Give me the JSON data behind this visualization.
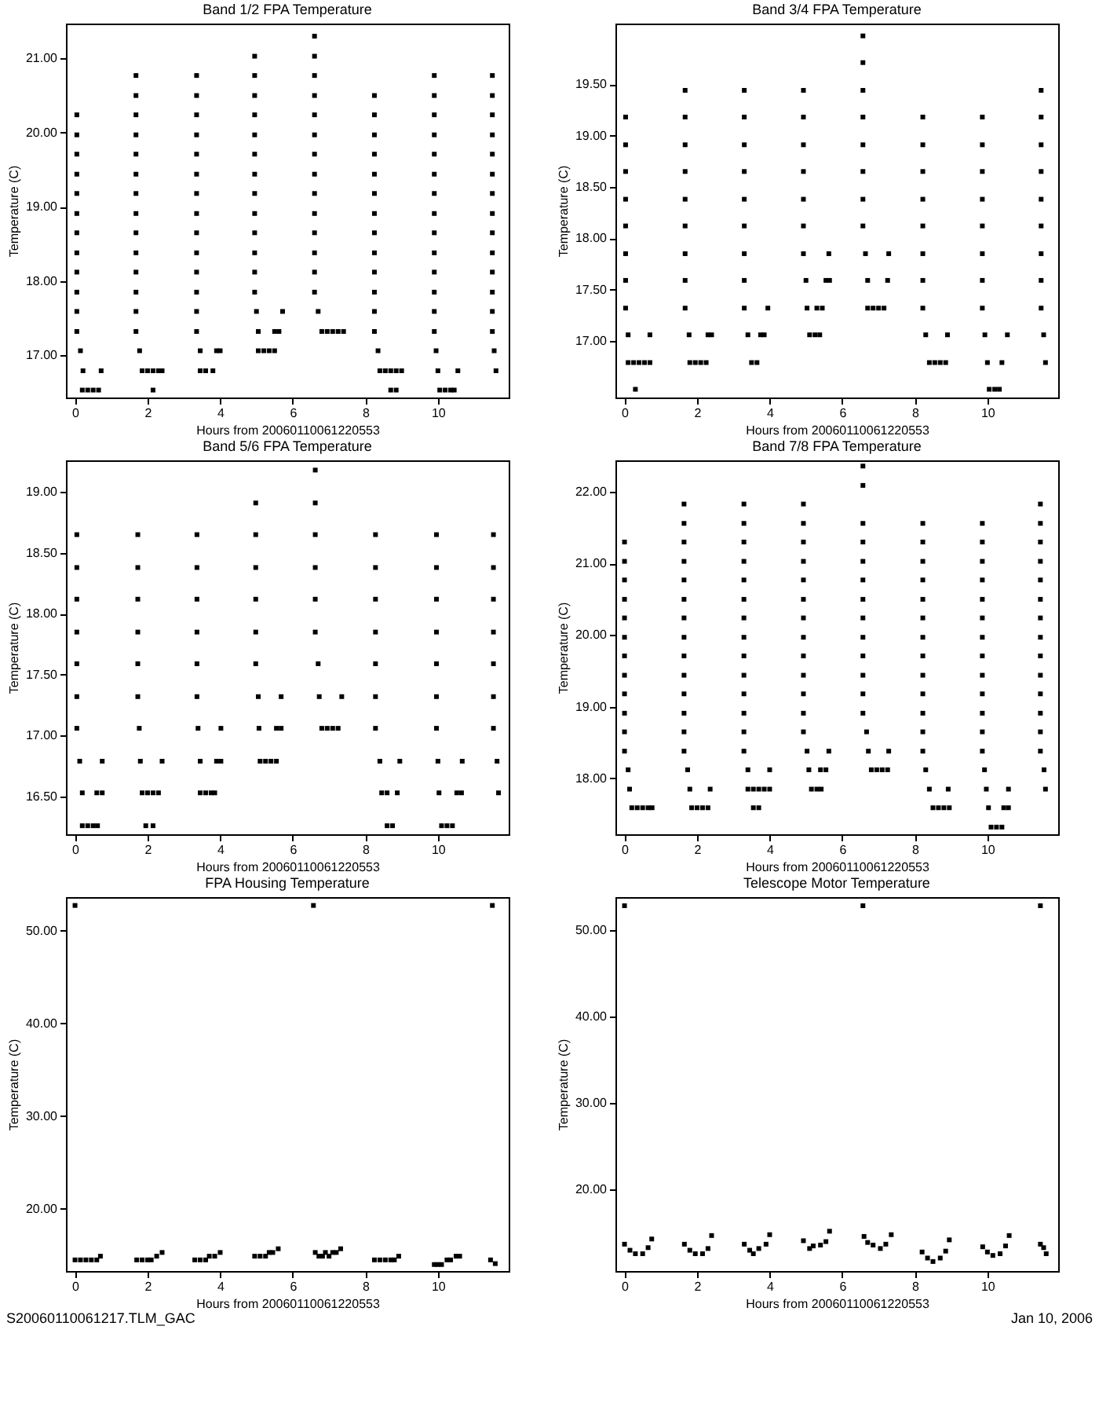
{
  "chart_data": [
    {
      "type": "scatter",
      "title": "Band 1/2 FPA Temperature",
      "xlabel": "Hours from 20060110061220553",
      "ylabel": "Temperature (C)",
      "marker": "square",
      "xlim": [
        -0.25,
        11.95
      ],
      "xticks": [
        0,
        2,
        4,
        6,
        8,
        10
      ],
      "ylim": [
        16.43,
        21.47
      ],
      "yticks": [
        {
          "value": 17,
          "label": "17.00"
        },
        {
          "value": 18,
          "label": "18.00"
        },
        {
          "value": 19,
          "label": "19.00"
        },
        {
          "value": 20,
          "label": "20.00"
        },
        {
          "value": 21,
          "label": "21.00"
        }
      ],
      "series": [
        {
          "color": "#000000",
          "x": [
            0.05,
            0.05,
            0.05,
            0.05,
            0.05,
            0.05,
            0.05,
            0.05,
            0.05,
            0.05,
            0.05,
            0.05,
            0.15,
            0.22,
            0.2,
            0.35,
            0.5,
            0.65,
            0.72
          ],
          "values": [
            20.24,
            19.97,
            19.71,
            19.44,
            19.18,
            18.91,
            18.65,
            18.38,
            18.12,
            17.85,
            17.59,
            17.32,
            17.06,
            16.79,
            16.53,
            16.53,
            16.53,
            16.53,
            16.79
          ]
        },
        {
          "color": "#000000",
          "x": [
            1.68,
            1.68,
            1.68,
            1.68,
            1.68,
            1.68,
            1.68,
            1.68,
            1.68,
            1.68,
            1.68,
            1.68,
            1.68,
            1.68,
            1.78,
            1.85,
            2.0,
            2.15,
            2.3,
            2.4,
            2.15
          ],
          "values": [
            20.77,
            20.5,
            20.24,
            19.97,
            19.71,
            19.44,
            19.18,
            18.91,
            18.65,
            18.38,
            18.12,
            17.85,
            17.59,
            17.32,
            17.06,
            16.79,
            16.79,
            16.79,
            16.79,
            16.79,
            16.53
          ]
        },
        {
          "color": "#000000",
          "x": [
            3.35,
            3.35,
            3.35,
            3.35,
            3.35,
            3.35,
            3.35,
            3.35,
            3.35,
            3.35,
            3.35,
            3.35,
            3.35,
            3.35,
            3.45,
            3.45,
            3.6,
            3.8,
            3.9,
            4.0
          ],
          "values": [
            20.77,
            20.5,
            20.24,
            19.97,
            19.71,
            19.44,
            19.18,
            18.91,
            18.65,
            18.38,
            18.12,
            17.85,
            17.59,
            17.32,
            17.06,
            16.79,
            16.79,
            16.79,
            17.06,
            17.06
          ]
        },
        {
          "color": "#000000",
          "x": [
            4.95,
            4.95,
            4.95,
            4.95,
            4.95,
            4.95,
            4.95,
            4.95,
            4.95,
            4.95,
            4.95,
            4.95,
            4.95,
            5.0,
            5.05,
            5.05,
            5.2,
            5.35,
            5.5,
            5.5,
            5.62,
            5.72
          ],
          "values": [
            21.03,
            20.77,
            20.5,
            20.24,
            19.97,
            19.71,
            19.44,
            19.18,
            18.91,
            18.65,
            18.38,
            18.12,
            17.85,
            17.59,
            17.32,
            17.06,
            17.06,
            17.06,
            17.06,
            17.32,
            17.32,
            17.59
          ]
        },
        {
          "color": "#000000",
          "x": [
            6.6,
            6.6,
            6.6,
            6.6,
            6.6,
            6.6,
            6.6,
            6.6,
            6.6,
            6.6,
            6.6,
            6.6,
            6.6,
            6.6,
            6.7,
            6.8,
            6.95,
            7.1,
            7.25,
            7.4
          ],
          "values": [
            21.3,
            21.03,
            20.77,
            20.5,
            20.24,
            19.97,
            19.71,
            19.44,
            19.18,
            18.91,
            18.65,
            18.38,
            18.12,
            17.85,
            17.59,
            17.32,
            17.32,
            17.32,
            17.32,
            17.32
          ]
        },
        {
          "color": "#000000",
          "x": [
            8.25,
            8.25,
            8.25,
            8.25,
            8.25,
            8.25,
            8.25,
            8.25,
            8.25,
            8.25,
            8.25,
            8.25,
            8.25,
            8.35,
            8.4,
            8.55,
            8.7,
            8.85,
            9.0,
            8.7,
            8.85
          ],
          "values": [
            20.5,
            20.24,
            19.97,
            19.71,
            19.44,
            19.18,
            18.91,
            18.65,
            18.38,
            18.12,
            17.85,
            17.59,
            17.32,
            17.06,
            16.79,
            16.79,
            16.79,
            16.79,
            16.79,
            16.53,
            16.53
          ]
        },
        {
          "color": "#000000",
          "x": [
            9.9,
            9.9,
            9.9,
            9.9,
            9.9,
            9.9,
            9.9,
            9.9,
            9.9,
            9.9,
            9.9,
            9.9,
            9.9,
            9.9,
            9.95,
            10.0,
            10.05,
            10.2,
            10.35,
            10.45,
            10.55
          ],
          "values": [
            20.77,
            20.5,
            20.24,
            19.97,
            19.71,
            19.44,
            19.18,
            18.91,
            18.65,
            18.38,
            18.12,
            17.85,
            17.59,
            17.32,
            17.06,
            16.79,
            16.53,
            16.53,
            16.53,
            16.53,
            16.79
          ]
        },
        {
          "color": "#000000",
          "x": [
            11.5,
            11.5,
            11.5,
            11.5,
            11.5,
            11.5,
            11.5,
            11.5,
            11.5,
            11.5,
            11.5,
            11.5,
            11.5,
            11.5,
            11.55,
            11.6
          ],
          "values": [
            20.77,
            20.5,
            20.24,
            19.97,
            19.71,
            19.44,
            19.18,
            18.91,
            18.65,
            18.38,
            18.12,
            17.85,
            17.59,
            17.32,
            17.06,
            16.79
          ]
        }
      ]
    },
    {
      "type": "scatter",
      "title": "Band 3/4 FPA Temperature",
      "xlabel": "Hours from 20060110061220553",
      "ylabel": "Temperature (C)",
      "marker": "square",
      "xlim": [
        -0.25,
        11.95
      ],
      "xticks": [
        0,
        2,
        4,
        6,
        8,
        10
      ],
      "ylim": [
        16.45,
        20.09
      ],
      "yticks": [
        {
          "value": 17,
          "label": "17.00"
        },
        {
          "value": 17.5,
          "label": "17.50"
        },
        {
          "value": 18,
          "label": "18.00"
        },
        {
          "value": 18.5,
          "label": "18.50"
        },
        {
          "value": 19,
          "label": "19.00"
        },
        {
          "value": 19.5,
          "label": "19.50"
        }
      ],
      "series": [
        {
          "color": "#000000",
          "x": [
            0.03,
            0.03,
            0.03,
            0.03,
            0.03,
            0.03,
            0.03,
            0.03,
            0.1,
            0.1,
            0.25,
            0.4,
            0.55,
            0.7,
            0.3,
            0.7
          ],
          "values": [
            19.18,
            18.91,
            18.65,
            18.38,
            18.12,
            17.85,
            17.59,
            17.32,
            17.06,
            16.79,
            16.79,
            16.79,
            16.79,
            16.79,
            16.53,
            17.06
          ]
        },
        {
          "color": "#000000",
          "x": [
            1.67,
            1.67,
            1.67,
            1.67,
            1.67,
            1.67,
            1.67,
            1.67,
            1.67,
            1.78,
            1.8,
            1.95,
            2.1,
            2.25,
            2.3,
            2.4
          ],
          "values": [
            19.44,
            19.18,
            18.91,
            18.65,
            18.38,
            18.12,
            17.85,
            17.59,
            17.32,
            17.06,
            16.79,
            16.79,
            16.79,
            16.79,
            17.06,
            17.06
          ]
        },
        {
          "color": "#000000",
          "x": [
            3.3,
            3.3,
            3.3,
            3.3,
            3.3,
            3.3,
            3.3,
            3.3,
            3.3,
            3.4,
            3.5,
            3.65,
            3.75,
            3.85,
            3.95
          ],
          "values": [
            19.44,
            19.18,
            18.91,
            18.65,
            18.38,
            18.12,
            17.85,
            17.59,
            17.32,
            17.06,
            16.79,
            16.79,
            17.06,
            17.06,
            17.32
          ]
        },
        {
          "color": "#000000",
          "x": [
            4.93,
            4.93,
            4.93,
            4.93,
            4.93,
            4.93,
            4.93,
            5.0,
            5.03,
            5.1,
            5.25,
            5.38,
            5.3,
            5.45,
            5.55,
            5.65,
            5.63
          ],
          "values": [
            19.44,
            19.18,
            18.91,
            18.65,
            18.38,
            18.12,
            17.85,
            17.59,
            17.32,
            17.06,
            17.06,
            17.06,
            17.32,
            17.32,
            17.59,
            17.59,
            17.85
          ]
        },
        {
          "color": "#000000",
          "x": [
            6.57,
            6.57,
            6.57,
            6.57,
            6.57,
            6.57,
            6.57,
            6.57,
            6.64,
            6.7,
            6.7,
            6.85,
            7.0,
            7.15,
            7.25,
            7.28
          ],
          "values": [
            19.97,
            19.71,
            19.44,
            19.18,
            18.91,
            18.65,
            18.38,
            18.12,
            17.85,
            17.59,
            17.32,
            17.32,
            17.32,
            17.32,
            17.59,
            17.85
          ]
        },
        {
          "color": "#000000",
          "x": [
            8.22,
            8.22,
            8.22,
            8.22,
            8.22,
            8.22,
            8.22,
            8.22,
            8.3,
            8.4,
            8.55,
            8.7,
            8.85,
            8.9
          ],
          "values": [
            19.18,
            18.91,
            18.65,
            18.38,
            18.12,
            17.85,
            17.59,
            17.32,
            17.06,
            16.79,
            16.79,
            16.79,
            16.79,
            17.06
          ]
        },
        {
          "color": "#000000",
          "x": [
            9.86,
            9.86,
            9.86,
            9.86,
            9.86,
            9.86,
            9.86,
            9.86,
            9.93,
            10.0,
            10.05,
            10.2,
            10.33,
            10.4,
            10.55
          ],
          "values": [
            19.18,
            18.91,
            18.65,
            18.38,
            18.12,
            17.85,
            17.59,
            17.32,
            17.06,
            16.79,
            16.53,
            16.53,
            16.53,
            16.79,
            17.06
          ]
        },
        {
          "color": "#000000",
          "x": [
            11.48,
            11.48,
            11.48,
            11.48,
            11.48,
            11.48,
            11.48,
            11.48,
            11.48,
            11.55,
            11.6
          ],
          "values": [
            19.44,
            19.18,
            18.91,
            18.65,
            18.38,
            18.12,
            17.85,
            17.59,
            17.32,
            17.06,
            16.79
          ]
        }
      ]
    },
    {
      "type": "scatter",
      "title": "Band 5/6 FPA Temperature",
      "xlabel": "Hours from 20060110061220553",
      "ylabel": "Temperature (C)",
      "marker": "square",
      "xlim": [
        -0.25,
        11.95
      ],
      "xticks": [
        0,
        2,
        4,
        6,
        8,
        10
      ],
      "ylim": [
        16.19,
        19.26
      ],
      "yticks": [
        {
          "value": 16.5,
          "label": "16.50"
        },
        {
          "value": 17,
          "label": "17.00"
        },
        {
          "value": 17.5,
          "label": "17.50"
        },
        {
          "value": 18,
          "label": "18.00"
        },
        {
          "value": 18.5,
          "label": "18.50"
        },
        {
          "value": 19,
          "label": "19.00"
        }
      ],
      "series": [
        {
          "color": "#000000",
          "x": [
            0.05,
            0.05,
            0.05,
            0.05,
            0.05,
            0.05,
            0.05,
            0.13,
            0.2,
            0.2,
            0.35,
            0.5,
            0.62,
            0.6,
            0.75,
            0.75
          ],
          "values": [
            18.65,
            18.38,
            18.12,
            17.85,
            17.59,
            17.32,
            17.06,
            16.79,
            16.53,
            16.26,
            16.26,
            16.26,
            16.26,
            16.53,
            16.53,
            16.79
          ]
        },
        {
          "color": "#000000",
          "x": [
            1.73,
            1.73,
            1.73,
            1.73,
            1.73,
            1.73,
            1.77,
            1.8,
            1.85,
            2.0,
            2.15,
            2.3,
            1.95,
            2.15,
            2.4
          ],
          "values": [
            18.65,
            18.38,
            18.12,
            17.85,
            17.59,
            17.32,
            17.06,
            16.79,
            16.53,
            16.53,
            16.53,
            16.53,
            16.26,
            16.26,
            16.79
          ]
        },
        {
          "color": "#000000",
          "x": [
            3.36,
            3.36,
            3.36,
            3.36,
            3.36,
            3.36,
            3.39,
            3.45,
            3.45,
            3.6,
            3.75,
            3.85,
            3.9,
            4.02,
            4.02
          ],
          "values": [
            18.65,
            18.38,
            18.12,
            17.85,
            17.59,
            17.32,
            17.06,
            16.79,
            16.53,
            16.53,
            16.53,
            16.53,
            16.79,
            16.79,
            17.06
          ]
        },
        {
          "color": "#000000",
          "x": [
            4.98,
            4.98,
            4.98,
            4.98,
            4.98,
            4.98,
            5.05,
            5.07,
            5.1,
            5.25,
            5.4,
            5.55,
            5.55,
            5.68,
            5.68
          ],
          "values": [
            18.91,
            18.65,
            18.38,
            18.12,
            17.85,
            17.59,
            17.32,
            17.06,
            16.79,
            16.79,
            16.79,
            16.79,
            17.06,
            17.06,
            17.32
          ]
        },
        {
          "color": "#000000",
          "x": [
            6.62,
            6.62,
            6.62,
            6.62,
            6.62,
            6.62,
            6.7,
            6.73,
            6.8,
            6.95,
            7.1,
            7.25,
            7.35
          ],
          "values": [
            19.18,
            18.91,
            18.65,
            18.38,
            18.12,
            17.85,
            17.59,
            17.32,
            17.06,
            17.06,
            17.06,
            17.06,
            17.32
          ]
        },
        {
          "color": "#000000",
          "x": [
            8.28,
            8.28,
            8.28,
            8.28,
            8.28,
            8.28,
            8.28,
            8.4,
            8.45,
            8.6,
            8.6,
            8.75,
            8.88,
            8.95
          ],
          "values": [
            18.65,
            18.38,
            18.12,
            17.85,
            17.59,
            17.32,
            17.06,
            16.79,
            16.53,
            16.53,
            16.26,
            16.26,
            16.53,
            16.79
          ]
        },
        {
          "color": "#000000",
          "x": [
            9.96,
            9.96,
            9.96,
            9.96,
            9.96,
            9.96,
            9.96,
            10.0,
            10.03,
            10.1,
            10.25,
            10.4,
            10.52,
            10.65,
            10.67
          ],
          "values": [
            18.65,
            18.38,
            18.12,
            17.85,
            17.59,
            17.32,
            17.06,
            16.79,
            16.53,
            16.26,
            16.26,
            16.26,
            16.53,
            16.53,
            16.79
          ]
        },
        {
          "color": "#000000",
          "x": [
            11.53,
            11.53,
            11.53,
            11.53,
            11.53,
            11.53,
            11.53,
            11.63,
            11.67
          ],
          "values": [
            18.65,
            18.38,
            18.12,
            17.85,
            17.59,
            17.32,
            17.06,
            16.79,
            16.53
          ]
        }
      ]
    },
    {
      "type": "scatter",
      "title": "Band 7/8 FPA Temperature",
      "xlabel": "Hours from 20060110061220553",
      "ylabel": "Temperature (C)",
      "marker": "square",
      "xlim": [
        -0.25,
        11.95
      ],
      "xticks": [
        0,
        2,
        4,
        6,
        8,
        10
      ],
      "ylim": [
        17.22,
        22.44
      ],
      "yticks": [
        {
          "value": 18,
          "label": "18.00"
        },
        {
          "value": 19,
          "label": "19.00"
        },
        {
          "value": 20,
          "label": "20.00"
        },
        {
          "value": 21,
          "label": "21.00"
        },
        {
          "value": 22,
          "label": "22.00"
        }
      ],
      "series": [
        {
          "color": "#000000",
          "x": [
            0,
            0,
            0,
            0,
            0,
            0,
            0,
            0,
            0,
            0,
            0,
            0,
            0.1,
            0.14,
            0.2,
            0.35,
            0.5,
            0.65,
            0.76
          ],
          "values": [
            21.3,
            21.03,
            20.77,
            20.5,
            20.24,
            19.97,
            19.71,
            19.44,
            19.18,
            18.91,
            18.65,
            18.38,
            18.12,
            17.85,
            17.59,
            17.59,
            17.59,
            17.59,
            17.59
          ]
        },
        {
          "color": "#000000",
          "x": [
            1.64,
            1.64,
            1.64,
            1.64,
            1.64,
            1.64,
            1.64,
            1.64,
            1.64,
            1.64,
            1.64,
            1.64,
            1.64,
            1.64,
            1.74,
            1.8,
            1.85,
            2.0,
            2.15,
            2.3,
            2.36
          ],
          "values": [
            21.83,
            21.56,
            21.3,
            21.03,
            20.77,
            20.5,
            20.24,
            19.97,
            19.71,
            19.44,
            19.18,
            18.91,
            18.65,
            18.38,
            18.12,
            17.85,
            17.59,
            17.59,
            17.59,
            17.59,
            17.85
          ]
        },
        {
          "color": "#000000",
          "x": [
            3.29,
            3.29,
            3.29,
            3.29,
            3.29,
            3.29,
            3.29,
            3.29,
            3.29,
            3.29,
            3.29,
            3.29,
            3.29,
            3.29,
            3.4,
            3.4,
            3.55,
            3.7,
            3.85,
            4.0,
            3.55,
            3.7,
            4.0
          ],
          "values": [
            21.83,
            21.56,
            21.3,
            21.03,
            20.77,
            20.5,
            20.24,
            19.97,
            19.71,
            19.44,
            19.18,
            18.91,
            18.65,
            18.38,
            18.12,
            17.85,
            17.85,
            17.85,
            17.85,
            17.85,
            17.59,
            17.59,
            18.12
          ]
        },
        {
          "color": "#000000",
          "x": [
            4.93,
            4.93,
            4.93,
            4.93,
            4.93,
            4.93,
            4.93,
            4.93,
            4.93,
            4.93,
            4.93,
            4.93,
            4.93,
            5.03,
            5.08,
            5.15,
            5.3,
            5.42,
            5.4,
            5.55,
            5.63
          ],
          "values": [
            21.83,
            21.56,
            21.3,
            21.03,
            20.77,
            20.5,
            20.24,
            19.97,
            19.71,
            19.44,
            19.18,
            18.91,
            18.65,
            18.38,
            18.12,
            17.85,
            17.85,
            17.85,
            18.12,
            18.12,
            18.38
          ]
        },
        {
          "color": "#000000",
          "x": [
            6.57,
            6.57,
            6.57,
            6.57,
            6.57,
            6.57,
            6.57,
            6.57,
            6.57,
            6.57,
            6.57,
            6.57,
            6.57,
            6.67,
            6.72,
            6.8,
            6.95,
            7.1,
            7.25,
            7.28
          ],
          "values": [
            22.36,
            22.09,
            21.56,
            21.3,
            21.03,
            20.77,
            20.5,
            20.24,
            19.97,
            19.71,
            19.44,
            19.18,
            18.91,
            18.65,
            18.38,
            18.12,
            18.12,
            18.12,
            18.12,
            18.38
          ]
        },
        {
          "color": "#000000",
          "x": [
            8.22,
            8.22,
            8.22,
            8.22,
            8.22,
            8.22,
            8.22,
            8.22,
            8.22,
            8.22,
            8.22,
            8.22,
            8.22,
            8.3,
            8.4,
            8.5,
            8.65,
            8.8,
            8.95,
            8.92
          ],
          "values": [
            21.56,
            21.3,
            21.03,
            20.77,
            20.5,
            20.24,
            19.97,
            19.71,
            19.44,
            19.18,
            18.91,
            18.65,
            18.38,
            18.12,
            17.85,
            17.59,
            17.59,
            17.59,
            17.59,
            17.85
          ]
        },
        {
          "color": "#000000",
          "x": [
            9.86,
            9.86,
            9.86,
            9.86,
            9.86,
            9.86,
            9.86,
            9.86,
            9.86,
            9.86,
            9.86,
            9.86,
            9.86,
            9.92,
            9.97,
            10.03,
            10.1,
            10.25,
            10.4,
            10.45,
            10.58,
            10.58
          ],
          "values": [
            21.56,
            21.3,
            21.03,
            20.77,
            20.5,
            20.24,
            19.97,
            19.71,
            19.44,
            19.18,
            18.91,
            18.65,
            18.38,
            18.12,
            17.85,
            17.59,
            17.32,
            17.32,
            17.32,
            17.59,
            17.59,
            17.85
          ]
        },
        {
          "color": "#000000",
          "x": [
            11.46,
            11.46,
            11.46,
            11.46,
            11.46,
            11.46,
            11.46,
            11.46,
            11.46,
            11.46,
            11.46,
            11.46,
            11.46,
            11.46,
            11.56,
            11.6
          ],
          "values": [
            21.83,
            21.56,
            21.3,
            21.03,
            20.77,
            20.5,
            20.24,
            19.97,
            19.71,
            19.44,
            19.18,
            18.91,
            18.65,
            18.38,
            18.12,
            17.85
          ]
        }
      ]
    },
    {
      "type": "scatter",
      "title": "FPA Housing Temperature",
      "xlabel": "Hours from 20060110061220553",
      "ylabel": "Temperature (C)",
      "marker": "square",
      "xlim": [
        -0.25,
        11.95
      ],
      "xticks": [
        0,
        2,
        4,
        6,
        8,
        10
      ],
      "ylim": [
        13.3,
        53.6
      ],
      "yticks": [
        {
          "value": 20,
          "label": "20.00"
        },
        {
          "value": 30,
          "label": "30.00"
        },
        {
          "value": 40,
          "label": "40.00"
        },
        {
          "value": 50,
          "label": "50.00"
        }
      ],
      "annotations": [
        "S20060110061217.TLM_GAC"
      ],
      "series": [
        {
          "color": "#000000",
          "x": [
            0,
            0.15,
            0.3,
            0.45,
            0.6,
            0.7,
            1.7,
            1.85,
            2.0,
            2.1,
            2.25,
            2.4,
            3.3,
            3.45,
            3.6,
            3.7,
            3.85,
            4.0,
            4.95,
            5.1,
            5.25,
            5.35,
            5.45,
            5.6,
            6.62,
            6.72,
            6.82,
            6.9,
            7.0,
            7.1,
            7.2,
            7.32,
            8.25,
            8.4,
            8.55,
            8.7,
            8.8,
            8.92,
            9.9,
            10.0,
            10.1,
            10.25,
            10.35,
            10.5,
            10.6,
            11.45,
            11.58,
            0,
            6.57,
            11.5
          ],
          "values": [
            14.5,
            14.5,
            14.5,
            14.5,
            14.5,
            14.9,
            14.5,
            14.5,
            14.5,
            14.5,
            14.9,
            15.3,
            14.5,
            14.5,
            14.5,
            14.9,
            14.9,
            15.3,
            14.9,
            14.9,
            14.9,
            15.3,
            15.3,
            15.7,
            15.3,
            14.9,
            14.9,
            15.3,
            14.9,
            15.3,
            15.3,
            15.7,
            14.5,
            14.5,
            14.5,
            14.5,
            14.5,
            14.9,
            14.0,
            14.0,
            14.0,
            14.5,
            14.5,
            14.9,
            14.9,
            14.5,
            14.1,
            52.7,
            52.7,
            52.7
          ]
        }
      ]
    },
    {
      "type": "scatter",
      "title": "Telescope Motor Temperature",
      "xlabel": "Hours from 20060110061220553",
      "ylabel": "Temperature (C)",
      "marker": "square",
      "xlim": [
        -0.25,
        11.95
      ],
      "xticks": [
        0,
        2,
        4,
        6,
        8,
        10
      ],
      "ylim": [
        10.6,
        53.8
      ],
      "yticks": [
        {
          "value": 20,
          "label": "20.00"
        },
        {
          "value": 30,
          "label": "30.00"
        },
        {
          "value": 40,
          "label": "40.00"
        },
        {
          "value": 50,
          "label": "50.00"
        }
      ],
      "annotations": [
        "Jan 10, 2006"
      ],
      "series": [
        {
          "color": "#000000",
          "x": [
            0,
            0.15,
            0.3,
            0.5,
            0.65,
            0.75,
            1.65,
            1.8,
            1.95,
            2.15,
            2.3,
            2.4,
            3.3,
            3.45,
            3.55,
            3.7,
            3.9,
            4.0,
            4.93,
            5.1,
            5.2,
            5.4,
            5.55,
            5.65,
            6.6,
            6.7,
            6.85,
            7.05,
            7.2,
            7.35,
            8.2,
            8.35,
            8.5,
            8.7,
            8.85,
            8.95,
            9.87,
            10.0,
            10.15,
            10.35,
            10.5,
            10.6,
            11.46,
            11.55,
            11.62,
            0,
            6.57,
            11.46
          ],
          "values": [
            13.7,
            13.0,
            12.6,
            12.6,
            13.3,
            14.3,
            13.7,
            13.0,
            12.6,
            12.6,
            13.2,
            14.7,
            13.7,
            13.0,
            12.6,
            13.2,
            13.7,
            14.8,
            14.1,
            13.2,
            13.5,
            13.6,
            14.0,
            15.2,
            14.6,
            13.9,
            13.6,
            13.2,
            13.7,
            14.8,
            12.8,
            12.1,
            11.7,
            12.1,
            12.9,
            14.2,
            13.4,
            12.8,
            12.4,
            12.6,
            13.5,
            14.7,
            13.7,
            13.3,
            12.6,
            52.8,
            52.8,
            52.8
          ]
        }
      ]
    }
  ]
}
